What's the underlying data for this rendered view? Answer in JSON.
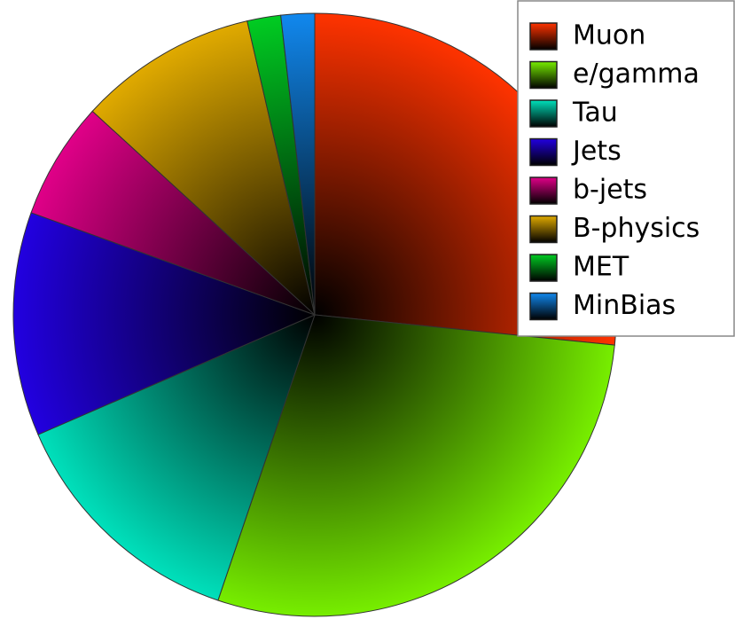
{
  "chart_data": {
    "type": "pie",
    "categories": [
      "Muon",
      "e/gamma",
      "Tau",
      "Jets",
      "b-jets",
      "B-physics",
      "MET",
      "MinBias"
    ],
    "values": [
      26.6,
      28.6,
      13.3,
      12,
      6.3,
      9.6,
      1.8,
      1.8
    ],
    "colors": [
      "#ff3300",
      "#77ee00",
      "#00e0bb",
      "#2200e0",
      "#e00088",
      "#e0aa00",
      "#00cc22",
      "#1188ee"
    ],
    "legend": "upper right"
  }
}
